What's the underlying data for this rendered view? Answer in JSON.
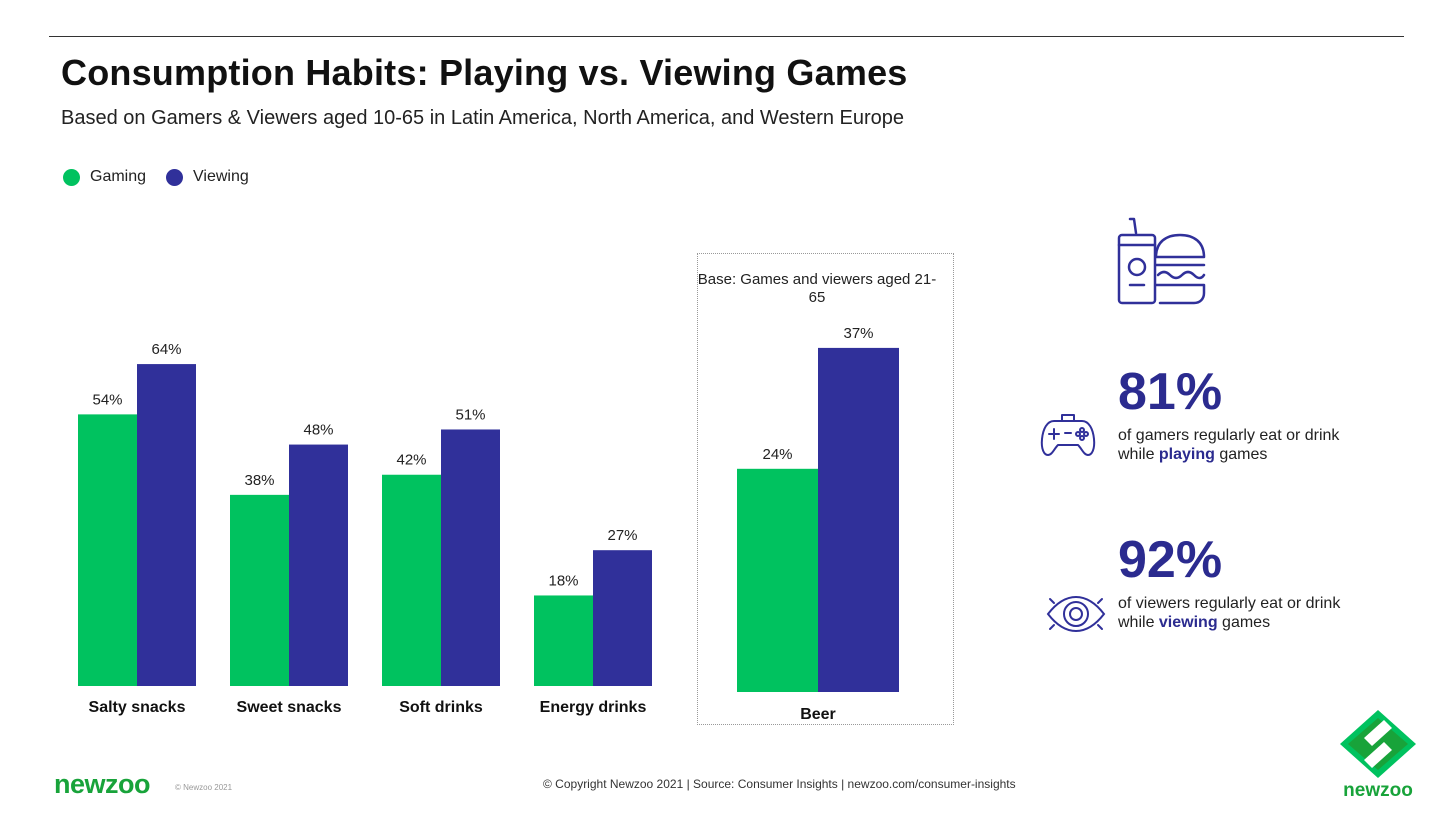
{
  "header": {
    "title": "Consumption Habits: Playing vs. Viewing Games",
    "subtitle": "Based on Gamers & Viewers aged 10-65 in Latin America, North America, and Western Europe"
  },
  "legend": [
    {
      "label": "Gaming",
      "color": "#00c25f"
    },
    {
      "label": "Viewing",
      "color": "#30309a"
    }
  ],
  "chart_data": {
    "type": "bar",
    "categories": [
      "Salty snacks",
      "Sweet snacks",
      "Soft drinks",
      "Energy drinks",
      "Beer"
    ],
    "series": [
      {
        "name": "Gaming",
        "values": [
          54,
          38,
          42,
          18,
          24
        ],
        "color": "#00c25f"
      },
      {
        "name": "Viewing",
        "values": [
          64,
          48,
          51,
          27,
          37
        ],
        "color": "#30309a"
      }
    ],
    "value_suffix": "%",
    "beer_note": "Base: Games and viewers aged 21-65"
  },
  "stats": [
    {
      "value": "81%",
      "text_before": "of gamers regularly eat or drink while ",
      "highlight": "playing",
      "text_after": " games",
      "icon": "gamepad-icon"
    },
    {
      "value": "92%",
      "text_before": "of viewers regularly eat or drink while ",
      "highlight": "viewing",
      "text_after": " games",
      "icon": "eye-icon"
    }
  ],
  "top_icon": "food-and-drink-icon",
  "footer": {
    "logo": "newzoo",
    "small": "© Newzoo 2021",
    "copyright": "© Copyright Newzoo 2021 | Source: Consumer Insights | newzoo.com/consumer-insights",
    "brand": "newzoo"
  }
}
